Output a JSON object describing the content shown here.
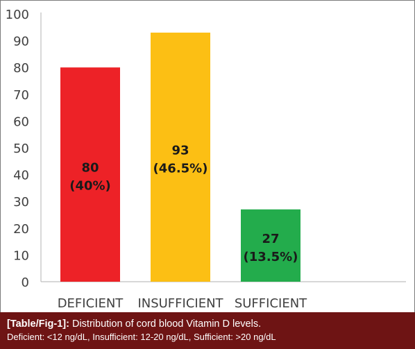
{
  "chart_data": {
    "type": "bar",
    "categories": [
      "DEFICIENT",
      "INSUFFICIENT",
      "SUFFICIENT"
    ],
    "values": [
      80,
      93,
      27
    ],
    "data_labels": [
      [
        "80",
        "(40%)"
      ],
      [
        "93",
        "(46.5%)"
      ],
      [
        "27",
        "(13.5%)"
      ]
    ],
    "colors": [
      "#ed2227",
      "#fcbf14",
      "#23ac4c"
    ],
    "ylim": [
      0,
      100
    ],
    "yticks": [
      0,
      10,
      20,
      30,
      40,
      50,
      60,
      70,
      80,
      90,
      100
    ],
    "grid": false,
    "legend": "none"
  },
  "caption": {
    "label": "[Table/Fig-1]:",
    "title": "Distribution of cord blood Vitamin D levels.",
    "note": "Deficient: <12 ng/dL, Insufficient: 12-20 ng/dL, Sufficient: >20 ng/dL"
  }
}
